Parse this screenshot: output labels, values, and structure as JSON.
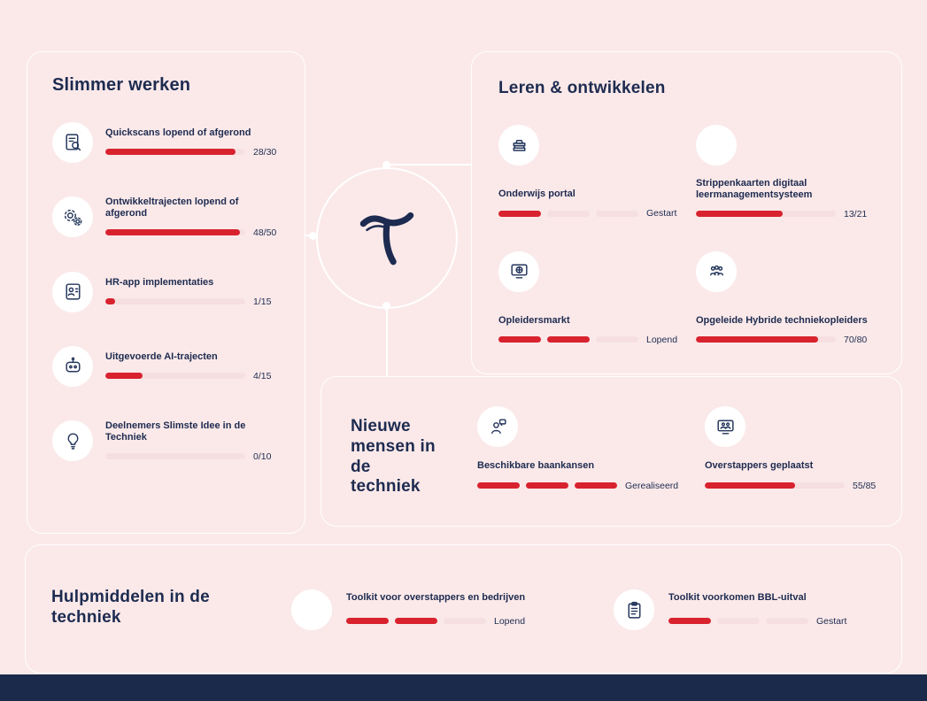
{
  "colors": {
    "background": "#fbe9e9",
    "accent_red": "#d8232f",
    "navy": "#1d2b50",
    "track_pink": "#f6dfdf",
    "footer_bar": "#1b2a4a"
  },
  "hub": {
    "logo_icon": "t-letter-logo"
  },
  "slimmer": {
    "title": "Slimmer werken",
    "items": [
      {
        "icon": "document-magnifier-icon",
        "label": "Quickscans lopend of afgerond",
        "value": "28/30",
        "pct": 93.3
      },
      {
        "icon": "gears-icon",
        "label": "Ontwikkeltrajecten lopend of afgerond",
        "value": "48/50",
        "pct": 96
      },
      {
        "icon": "person-card-icon",
        "label": "HR-app implementaties",
        "value": "1/15",
        "pct": 6.7
      },
      {
        "icon": "robot-icon",
        "label": "Uitgevoerde AI-trajecten",
        "value": "4/15",
        "pct": 26.7
      },
      {
        "icon": "lightbulb-icon",
        "label": "Deelnemers Slimste Idee in de Techniek",
        "value": "0/10",
        "pct": 0
      }
    ]
  },
  "leren": {
    "title": "Leren & ontwikkelen",
    "items": [
      {
        "icon": "books-icon",
        "label": "Onderwijs portal",
        "status": "Gestart",
        "filled": 1,
        "total": 3
      },
      {
        "icon": "blank-icon",
        "label": "Strippenkaarten digitaal leermanagementsysteem",
        "value": "13/21",
        "pct": 61.9
      },
      {
        "icon": "globe-monitor-icon",
        "label": "Opleidersmarkt",
        "status": "Lopend",
        "filled": 2,
        "total": 3
      },
      {
        "icon": "people-group-icon",
        "label": "Opgeleide Hybride techniekopleiders",
        "value": "70/80",
        "pct": 87.5
      }
    ]
  },
  "nieuwe": {
    "title": "Nieuwe mensen in de techniek",
    "items": [
      {
        "icon": "person-speech-icon",
        "label": "Beschikbare baankansen",
        "status": "Gerealiseerd",
        "filled": 3,
        "total": 3
      },
      {
        "icon": "monitor-people-icon",
        "label": "Overstappers geplaatst",
        "value": "55/85",
        "pct": 64.7
      }
    ]
  },
  "hulp": {
    "title": "Hulpmiddelen in de techniek",
    "items": [
      {
        "icon": "blank-icon",
        "label": "Toolkit voor overstappers en bedrijven",
        "status": "Lopend",
        "filled": 2,
        "total": 3
      },
      {
        "icon": "clipboard-icon",
        "label": "Toolkit voorkomen BBL-uitval",
        "status": "Gestart",
        "filled": 1,
        "total": 3
      }
    ]
  }
}
